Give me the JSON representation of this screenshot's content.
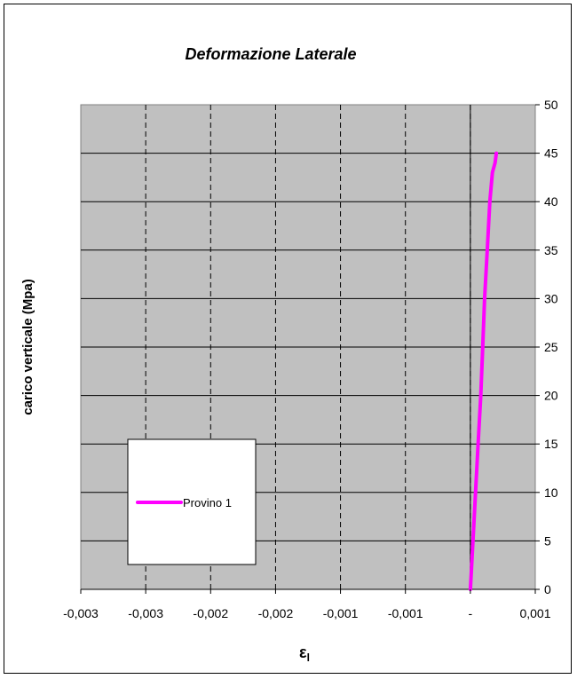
{
  "chart_data": {
    "type": "line",
    "title": "Deformazione Laterale",
    "xlabel": "εl",
    "ylabel": "carico verticale (Mpa)",
    "x_tick_labels": [
      "-0,003",
      "-0,003",
      "-0,002",
      "-0,002",
      "-0,001",
      "-0,001",
      "-",
      "0,001"
    ],
    "xlim": [
      -0.003,
      0.0005
    ],
    "ylim": [
      0,
      50
    ],
    "y_ticks": [
      0,
      5,
      10,
      15,
      20,
      25,
      30,
      35,
      40,
      45,
      50
    ],
    "x_grid": "dashed",
    "y_grid": "solid",
    "plot_background": "#c0c0c0",
    "legend_position": "bottom-left",
    "series": [
      {
        "name": "Provino 1",
        "color": "#ff00ff",
        "points": [
          [
            0.0,
            0
          ],
          [
            2e-05,
            5
          ],
          [
            4e-05,
            10
          ],
          [
            6e-05,
            15
          ],
          [
            8e-05,
            20
          ],
          [
            9.5e-05,
            25
          ],
          [
            0.00011,
            30
          ],
          [
            0.00013,
            35
          ],
          [
            0.00015,
            40
          ],
          [
            0.00017,
            43
          ],
          [
            0.00019,
            44
          ],
          [
            0.0002,
            45
          ]
        ]
      }
    ]
  }
}
